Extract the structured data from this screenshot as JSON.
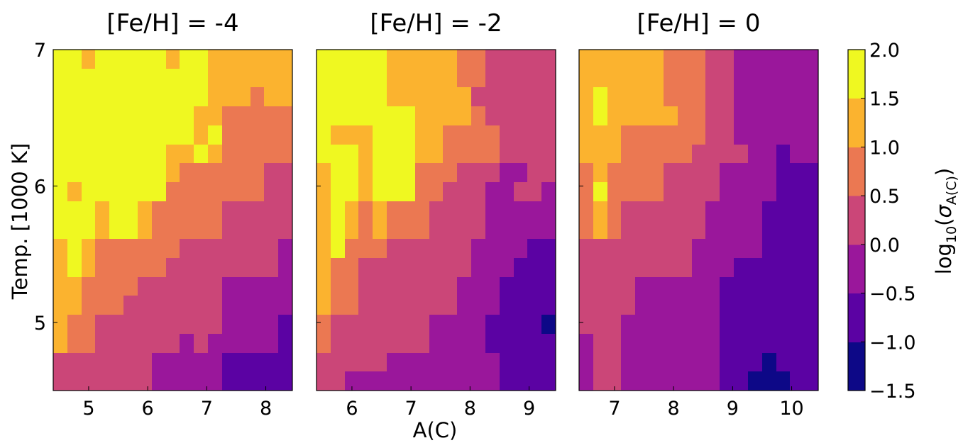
{
  "chart_data": {
    "type": "heatmap",
    "xlabel": "A(C)",
    "ylabel": "Temp. [1000 K]",
    "colorbar": {
      "label_prefix": "log",
      "label_sub": "10",
      "label_open": "(",
      "label_sigma": "σ",
      "label_sigma_sub": "A(C)",
      "label_close": ")",
      "ticks": [
        "2.0",
        "1.5",
        "1.0",
        "0.5",
        "0.0",
        "−0.5",
        "−1.0",
        "−1.5"
      ],
      "range": [
        -1.5,
        2.0
      ],
      "levels": [
        -1.5,
        -1.0,
        -0.5,
        0.0,
        0.5,
        1.0,
        1.5,
        2.0
      ],
      "colors": [
        "#0d0887",
        "#5b02a3",
        "#9a179b",
        "#cb4678",
        "#eb7852",
        "#fbb32f",
        "#eff821"
      ]
    },
    "color_scale_note": "cell values are colormap band indices: 0 = [-1.5,-1.0), 1 = [-1.0,-0.5), 2 = [-0.5,0.0), 3 = [0.0,0.5), 4 = [0.5,1.0), 5 = [1.0,1.5), 6 = [1.5,2.0]",
    "panels": [
      {
        "title": "[Fe/H] = -4",
        "xlim": [
          4.4,
          8.45
        ],
        "ylim": [
          4.5,
          7.0
        ],
        "xticks": [
          "5",
          "6",
          "7",
          "8"
        ],
        "xtick_values": [
          5,
          6,
          7,
          8
        ],
        "yticks": [
          "5",
          "6",
          "7"
        ],
        "ytick_values": [
          5,
          6,
          7
        ],
        "grid": [
          [
            6,
            6,
            5,
            6,
            6,
            6,
            6,
            6,
            5,
            6,
            6,
            5,
            5,
            5,
            5,
            5,
            5
          ],
          [
            6,
            6,
            6,
            6,
            6,
            6,
            6,
            6,
            6,
            6,
            6,
            5,
            5,
            5,
            5,
            5,
            5
          ],
          [
            6,
            6,
            6,
            6,
            6,
            6,
            6,
            6,
            6,
            6,
            6,
            5,
            5,
            5,
            4,
            5,
            5
          ],
          [
            6,
            6,
            6,
            6,
            6,
            6,
            6,
            6,
            6,
            6,
            5,
            5,
            4,
            4,
            4,
            4,
            4
          ],
          [
            6,
            6,
            6,
            6,
            6,
            6,
            6,
            6,
            6,
            6,
            5,
            6,
            4,
            4,
            4,
            4,
            4
          ],
          [
            6,
            6,
            6,
            6,
            6,
            6,
            6,
            6,
            5,
            5,
            6,
            5,
            4,
            4,
            4,
            4,
            4
          ],
          [
            6,
            6,
            6,
            6,
            6,
            6,
            6,
            6,
            5,
            4,
            4,
            4,
            4,
            4,
            4,
            3,
            3
          ],
          [
            6,
            5,
            6,
            6,
            6,
            6,
            6,
            6,
            4,
            4,
            4,
            4,
            4,
            4,
            4,
            3,
            3
          ],
          [
            6,
            6,
            6,
            5,
            6,
            6,
            5,
            4,
            4,
            4,
            4,
            4,
            3,
            3,
            3,
            3,
            3
          ],
          [
            6,
            6,
            6,
            5,
            6,
            6,
            5,
            4,
            4,
            4,
            4,
            4,
            3,
            3,
            3,
            3,
            3
          ],
          [
            5,
            6,
            5,
            4,
            4,
            4,
            4,
            4,
            4,
            3,
            3,
            3,
            3,
            3,
            3,
            3,
            2
          ],
          [
            5,
            6,
            5,
            4,
            4,
            4,
            4,
            4,
            3,
            3,
            3,
            3,
            3,
            3,
            3,
            3,
            2
          ],
          [
            5,
            5,
            4,
            4,
            4,
            4,
            3,
            3,
            3,
            3,
            3,
            3,
            2,
            2,
            2,
            2,
            2
          ],
          [
            5,
            5,
            4,
            4,
            4,
            3,
            3,
            3,
            3,
            3,
            3,
            3,
            2,
            2,
            2,
            2,
            2
          ],
          [
            5,
            4,
            4,
            3,
            3,
            3,
            3,
            3,
            3,
            3,
            3,
            3,
            2,
            2,
            2,
            2,
            1
          ],
          [
            5,
            4,
            4,
            3,
            3,
            3,
            3,
            3,
            3,
            2,
            3,
            2,
            2,
            2,
            2,
            2,
            1
          ],
          [
            3,
            3,
            3,
            3,
            3,
            3,
            3,
            2,
            2,
            2,
            2,
            2,
            1,
            1,
            1,
            1,
            1
          ],
          [
            3,
            3,
            3,
            3,
            3,
            3,
            3,
            2,
            2,
            2,
            2,
            2,
            1,
            1,
            1,
            1,
            1
          ]
        ]
      },
      {
        "title": "[Fe/H] = -2",
        "xlim": [
          5.4,
          9.45
        ],
        "ylim": [
          4.5,
          7.0
        ],
        "xticks": [
          "6",
          "7",
          "8",
          "9"
        ],
        "xtick_values": [
          6,
          7,
          8,
          9
        ],
        "yticks": [],
        "ytick_values": [
          5,
          6,
          7
        ],
        "grid": [
          [
            6,
            6,
            6,
            6,
            6,
            5,
            5,
            5,
            5,
            5,
            4,
            4,
            3,
            3,
            3,
            3,
            3
          ],
          [
            6,
            6,
            6,
            6,
            6,
            5,
            5,
            5,
            5,
            5,
            4,
            4,
            3,
            3,
            3,
            3,
            3
          ],
          [
            6,
            6,
            6,
            6,
            6,
            5,
            5,
            5,
            5,
            5,
            5,
            3,
            3,
            3,
            3,
            3,
            3
          ],
          [
            6,
            6,
            6,
            6,
            6,
            6,
            6,
            5,
            5,
            5,
            5,
            4,
            3,
            3,
            3,
            3,
            3
          ],
          [
            6,
            5,
            5,
            5,
            6,
            6,
            6,
            5,
            5,
            4,
            4,
            4,
            4,
            3,
            3,
            3,
            3
          ],
          [
            6,
            6,
            6,
            5,
            6,
            6,
            6,
            5,
            5,
            4,
            4,
            4,
            4,
            3,
            3,
            3,
            3
          ],
          [
            5,
            6,
            6,
            5,
            6,
            6,
            6,
            4,
            4,
            4,
            3,
            3,
            3,
            2,
            2,
            3,
            3
          ],
          [
            5,
            6,
            6,
            5,
            6,
            6,
            6,
            4,
            4,
            3,
            3,
            3,
            2,
            2,
            3,
            3,
            2
          ],
          [
            5,
            6,
            5,
            4,
            5,
            4,
            4,
            4,
            3,
            3,
            3,
            3,
            2,
            2,
            2,
            2,
            2
          ],
          [
            5,
            6,
            5,
            4,
            5,
            4,
            4,
            4,
            3,
            3,
            3,
            3,
            2,
            2,
            2,
            2,
            2
          ],
          [
            5,
            6,
            4,
            4,
            4,
            3,
            3,
            3,
            3,
            3,
            3,
            2,
            2,
            2,
            2,
            1,
            1
          ],
          [
            5,
            4,
            4,
            3,
            3,
            3,
            3,
            3,
            3,
            3,
            3,
            2,
            2,
            2,
            1,
            1,
            1
          ],
          [
            5,
            4,
            4,
            3,
            3,
            3,
            3,
            3,
            3,
            3,
            2,
            2,
            2,
            1,
            1,
            1,
            1
          ],
          [
            5,
            4,
            4,
            3,
            3,
            3,
            3,
            3,
            3,
            3,
            2,
            2,
            2,
            1,
            1,
            1,
            1
          ],
          [
            4,
            3,
            3,
            3,
            3,
            3,
            3,
            3,
            2,
            2,
            2,
            2,
            1,
            1,
            1,
            1,
            0
          ],
          [
            4,
            3,
            3,
            3,
            3,
            3,
            3,
            3,
            2,
            2,
            2,
            2,
            1,
            1,
            1,
            1,
            1
          ],
          [
            3,
            3,
            3,
            3,
            3,
            2,
            2,
            2,
            2,
            2,
            2,
            2,
            2,
            1,
            1,
            1,
            1
          ],
          [
            3,
            3,
            2,
            2,
            2,
            2,
            2,
            2,
            2,
            2,
            2,
            2,
            2,
            1,
            1,
            1,
            1
          ]
        ]
      },
      {
        "title": "[Fe/H] = 0",
        "xlim": [
          6.4,
          10.45
        ],
        "ylim": [
          4.5,
          7.0
        ],
        "xticks": [
          "7",
          "8",
          "9",
          "10"
        ],
        "xtick_values": [
          7,
          8,
          9,
          10
        ],
        "yticks": [],
        "ytick_values": [
          5,
          6,
          7
        ],
        "grid": [
          [
            5,
            5,
            5,
            5,
            5,
            5,
            4,
            4,
            4,
            3,
            3,
            2,
            2,
            2,
            2,
            2,
            2
          ],
          [
            5,
            5,
            5,
            5,
            5,
            5,
            4,
            4,
            4,
            3,
            3,
            2,
            2,
            2,
            2,
            2,
            2
          ],
          [
            5,
            6,
            5,
            5,
            5,
            5,
            4,
            4,
            4,
            3,
            3,
            2,
            2,
            2,
            2,
            2,
            2
          ],
          [
            5,
            6,
            5,
            5,
            5,
            5,
            5,
            4,
            4,
            3,
            3,
            2,
            2,
            2,
            2,
            2,
            2
          ],
          [
            5,
            5,
            5,
            4,
            4,
            4,
            4,
            4,
            4,
            3,
            3,
            2,
            2,
            2,
            2,
            2,
            2
          ],
          [
            5,
            5,
            5,
            4,
            4,
            4,
            4,
            4,
            3,
            3,
            3,
            3,
            2,
            2,
            1,
            2,
            2
          ],
          [
            4,
            5,
            4,
            4,
            4,
            4,
            3,
            3,
            3,
            3,
            2,
            2,
            2,
            2,
            1,
            1,
            1
          ],
          [
            4,
            6,
            4,
            4,
            4,
            4,
            3,
            3,
            3,
            3,
            2,
            2,
            2,
            2,
            1,
            1,
            1
          ],
          [
            4,
            5,
            4,
            3,
            3,
            3,
            3,
            3,
            3,
            2,
            2,
            2,
            2,
            1,
            1,
            1,
            1
          ],
          [
            4,
            5,
            4,
            3,
            3,
            3,
            3,
            3,
            3,
            2,
            2,
            2,
            2,
            1,
            1,
            1,
            1
          ],
          [
            3,
            3,
            3,
            3,
            3,
            3,
            3,
            3,
            2,
            2,
            2,
            2,
            2,
            1,
            1,
            1,
            1
          ],
          [
            3,
            3,
            3,
            3,
            3,
            3,
            3,
            3,
            2,
            2,
            2,
            1,
            1,
            1,
            1,
            1,
            1
          ],
          [
            3,
            3,
            3,
            3,
            2,
            2,
            2,
            2,
            2,
            2,
            1,
            1,
            1,
            1,
            1,
            1,
            1
          ],
          [
            3,
            3,
            3,
            3,
            2,
            2,
            2,
            2,
            2,
            2,
            1,
            1,
            1,
            1,
            1,
            1,
            1
          ],
          [
            3,
            3,
            3,
            2,
            2,
            2,
            2,
            2,
            2,
            2,
            1,
            1,
            1,
            1,
            1,
            1,
            1
          ],
          [
            2,
            3,
            3,
            2,
            2,
            2,
            2,
            2,
            2,
            2,
            1,
            1,
            1,
            1,
            1,
            1,
            1
          ],
          [
            2,
            3,
            3,
            2,
            2,
            2,
            2,
            2,
            2,
            2,
            1,
            1,
            1,
            0,
            1,
            1,
            1
          ],
          [
            2,
            3,
            3,
            2,
            2,
            2,
            2,
            2,
            2,
            2,
            1,
            1,
            0,
            0,
            0,
            1,
            1
          ]
        ]
      }
    ]
  }
}
